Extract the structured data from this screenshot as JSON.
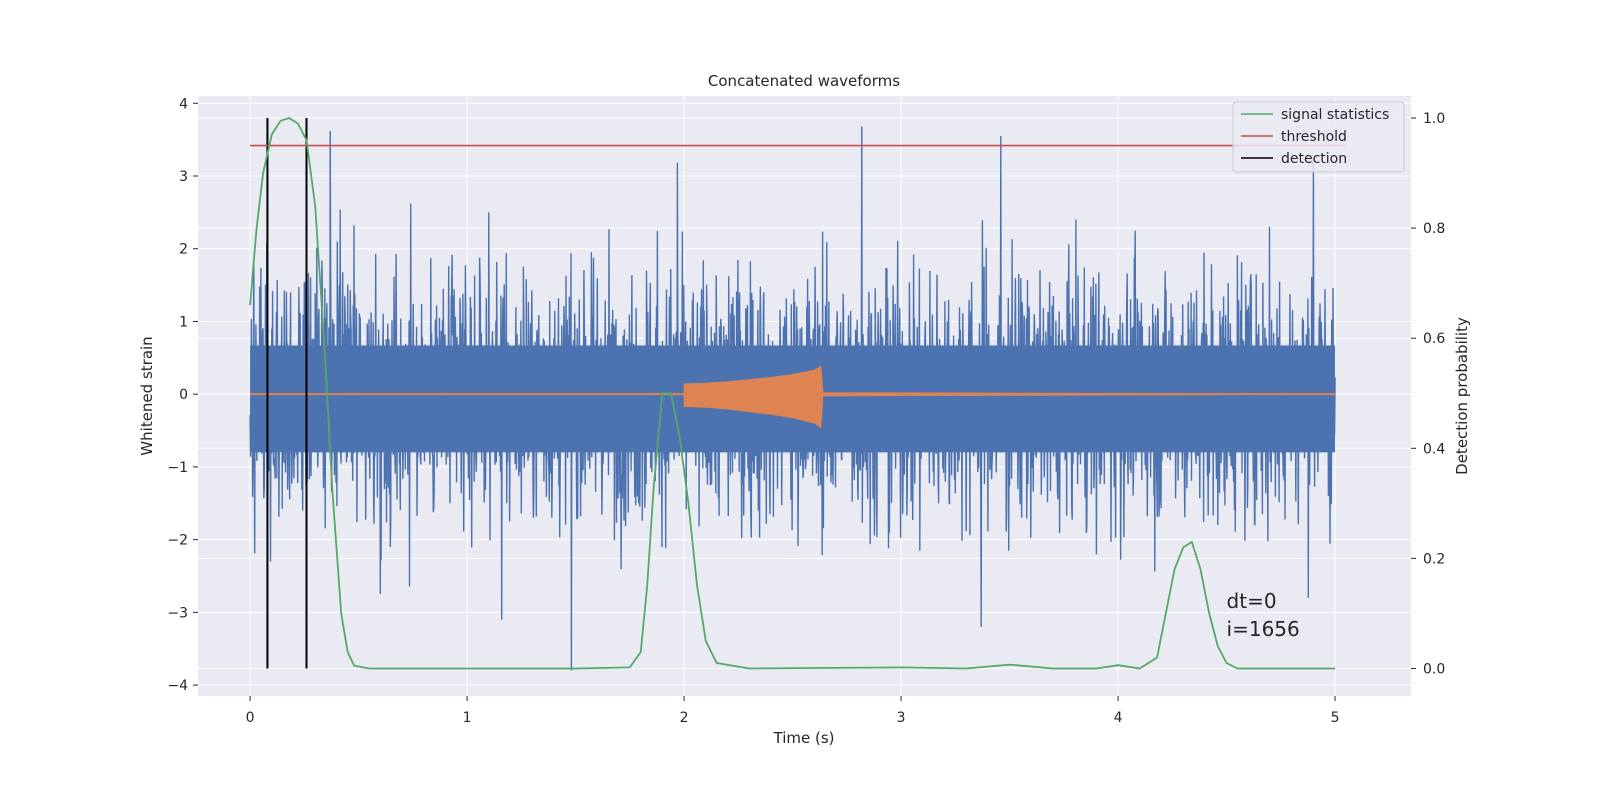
{
  "chart_data": {
    "type": "line",
    "title": "Concatenated waveforms",
    "xlabel": "Time (s)",
    "ylabel": "Whitened strain",
    "ylabel_right": "Detection probability",
    "xlim": [
      -0.24,
      5.35
    ],
    "ylim": [
      -4.15,
      4.1
    ],
    "ylim_right": [
      -0.05,
      1.04
    ],
    "xticks": [
      0,
      1,
      2,
      3,
      4,
      5
    ],
    "yticks": [
      -4,
      -3,
      -2,
      -1,
      0,
      1,
      2,
      3,
      4
    ],
    "yticks_right": [
      0.0,
      0.2,
      0.4,
      0.6,
      0.8,
      1.0
    ],
    "xtick_labels": [
      "0",
      "1",
      "2",
      "3",
      "4",
      "5"
    ],
    "ytick_labels": [
      "−4",
      "−3",
      "−2",
      "−1",
      "0",
      "1",
      "2",
      "3",
      "4"
    ],
    "ytick_right_labels": [
      "0.0",
      "0.2",
      "0.4",
      "0.6",
      "0.8",
      "1.0"
    ],
    "grid": true,
    "legend_position": "top-right",
    "colors": {
      "strain": "#4c72b0",
      "injection": "#dd8452",
      "signal_statistics": "#55a868",
      "threshold": "#c44e52",
      "detection": "#000000",
      "background": "#eaeaf2",
      "grid": "#ffffff"
    },
    "legend": [
      {
        "label": "signal statistics",
        "color": "#55a868"
      },
      {
        "label": "threshold",
        "color": "#c44e52"
      },
      {
        "label": "detection",
        "color": "#000000"
      }
    ],
    "strain": {
      "x_range": [
        0,
        5
      ],
      "ymin": -3.8,
      "ymax": 3.68,
      "peaks": [
        {
          "x": 0.37,
          "y": 3.62
        },
        {
          "x": 1.97,
          "y": 3.18
        },
        {
          "x": 2.82,
          "y": 3.68
        },
        {
          "x": 3.46,
          "y": 3.55
        },
        {
          "x": 4.9,
          "y": 3.3
        },
        {
          "x": 1.48,
          "y": -3.8
        },
        {
          "x": 3.37,
          "y": -3.2
        },
        {
          "x": 1.16,
          "y": -3.1
        }
      ]
    },
    "injection": {
      "x": [
        0,
        2.0,
        2.0,
        2.1,
        2.2,
        2.3,
        2.4,
        2.5,
        2.6,
        2.63,
        2.64,
        5.0
      ],
      "amplitude": [
        0,
        0,
        0.14,
        0.15,
        0.17,
        0.2,
        0.23,
        0.27,
        0.33,
        0.38,
        0.02,
        0
      ]
    },
    "signal_statistics": {
      "x": [
        0.0,
        0.03,
        0.06,
        0.1,
        0.14,
        0.18,
        0.22,
        0.26,
        0.3,
        0.34,
        0.38,
        0.42,
        0.45,
        0.48,
        0.55,
        1.0,
        1.5,
        1.75,
        1.8,
        1.83,
        1.86,
        1.9,
        1.94,
        1.98,
        2.02,
        2.06,
        2.1,
        2.15,
        2.3,
        3.0,
        3.3,
        3.5,
        3.7,
        3.9,
        4.0,
        4.1,
        4.18,
        4.22,
        4.26,
        4.3,
        4.34,
        4.38,
        4.42,
        4.46,
        4.5,
        4.55,
        4.6,
        5.0
      ],
      "y": [
        0.66,
        0.8,
        0.9,
        0.97,
        0.995,
        1.0,
        0.99,
        0.96,
        0.84,
        0.6,
        0.32,
        0.1,
        0.03,
        0.005,
        0.0,
        0.0,
        0.0,
        0.002,
        0.03,
        0.15,
        0.33,
        0.5,
        0.5,
        0.42,
        0.3,
        0.15,
        0.05,
        0.01,
        0.0,
        0.002,
        0.0,
        0.007,
        0.0,
        0.0,
        0.006,
        0.0,
        0.02,
        0.1,
        0.18,
        0.22,
        0.23,
        0.18,
        0.1,
        0.04,
        0.01,
        0.0,
        0.0,
        0.0
      ]
    },
    "threshold": {
      "value": 0.95,
      "x_range": [
        0,
        5.05
      ]
    },
    "detections": [
      0.08,
      0.26
    ],
    "annotations": {
      "dt": "dt=0",
      "i": "i=1656",
      "x": 4.5,
      "y_right": 0.11
    }
  }
}
